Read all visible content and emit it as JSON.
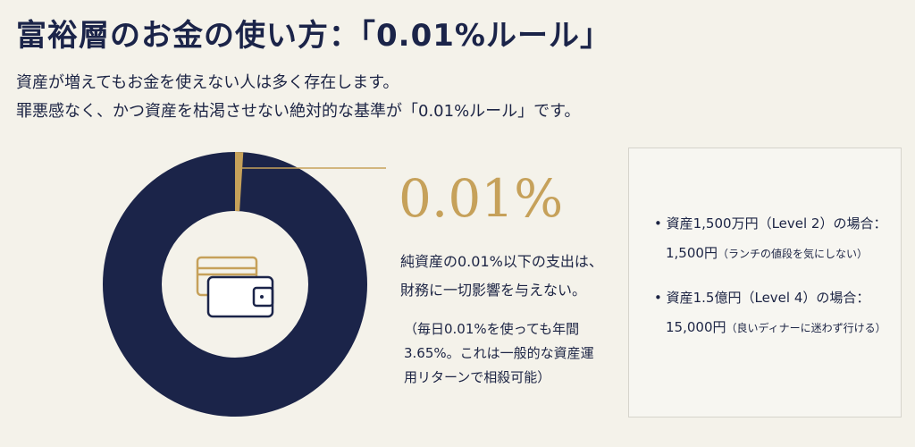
{
  "header": {
    "title": "富裕層のお金の使い方：「0.01%ルール」",
    "description": [
      "資産が増えてもお金を使えない人は多く存在します。",
      "罪悪感なく、かつ資産を枯渇させない絶対的な基準が「0.01%ルール」です。"
    ]
  },
  "highlight": {
    "figure": "0.01%",
    "statement": [
      "純資産の0.01%以下の支出は、",
      "財務に一切影響を与えない。"
    ],
    "note": [
      "（毎日0.01%を使っても年間",
      "3.65%。これは一般的な資産運",
      "用リターンで相殺可能）"
    ]
  },
  "examples": [
    {
      "label": "資産1,500万円（Level 2）の場合：",
      "amount": "1,500円",
      "comment": "（ランチの値段を気にしない）"
    },
    {
      "label": "資産1.5億円（Level 4）の場合：",
      "amount": "15,000円",
      "comment": "（良いディナーに迷わず行ける）"
    }
  ]
}
